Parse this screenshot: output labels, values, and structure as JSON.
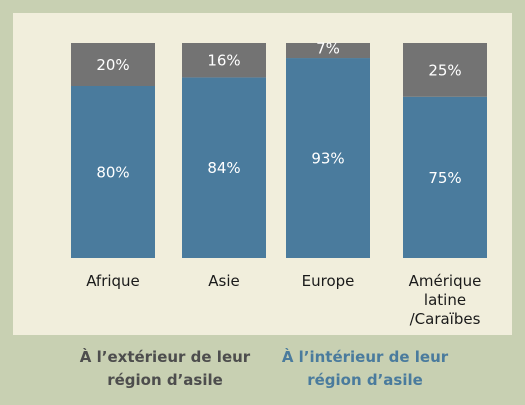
{
  "chart_data": {
    "type": "stacked_bar",
    "categories": [
      "Afrique",
      "Asie",
      "Europe",
      "Amérique latine /Caraïbes"
    ],
    "series": [
      {
        "name": "À l’extérieur de leur région d’asile",
        "color": "#737373",
        "values": [
          20,
          16,
          7,
          25
        ],
        "value_labels": [
          "20%",
          "16%",
          "7%",
          "25%"
        ]
      },
      {
        "name": "À l’intérieur de leur région d’asile",
        "color": "#4a7b9d",
        "values": [
          80,
          84,
          93,
          75
        ],
        "value_labels": [
          "80%",
          "84%",
          "93%",
          "75%"
        ]
      }
    ],
    "ylim": [
      0,
      100
    ],
    "legend": "bottom"
  }
}
